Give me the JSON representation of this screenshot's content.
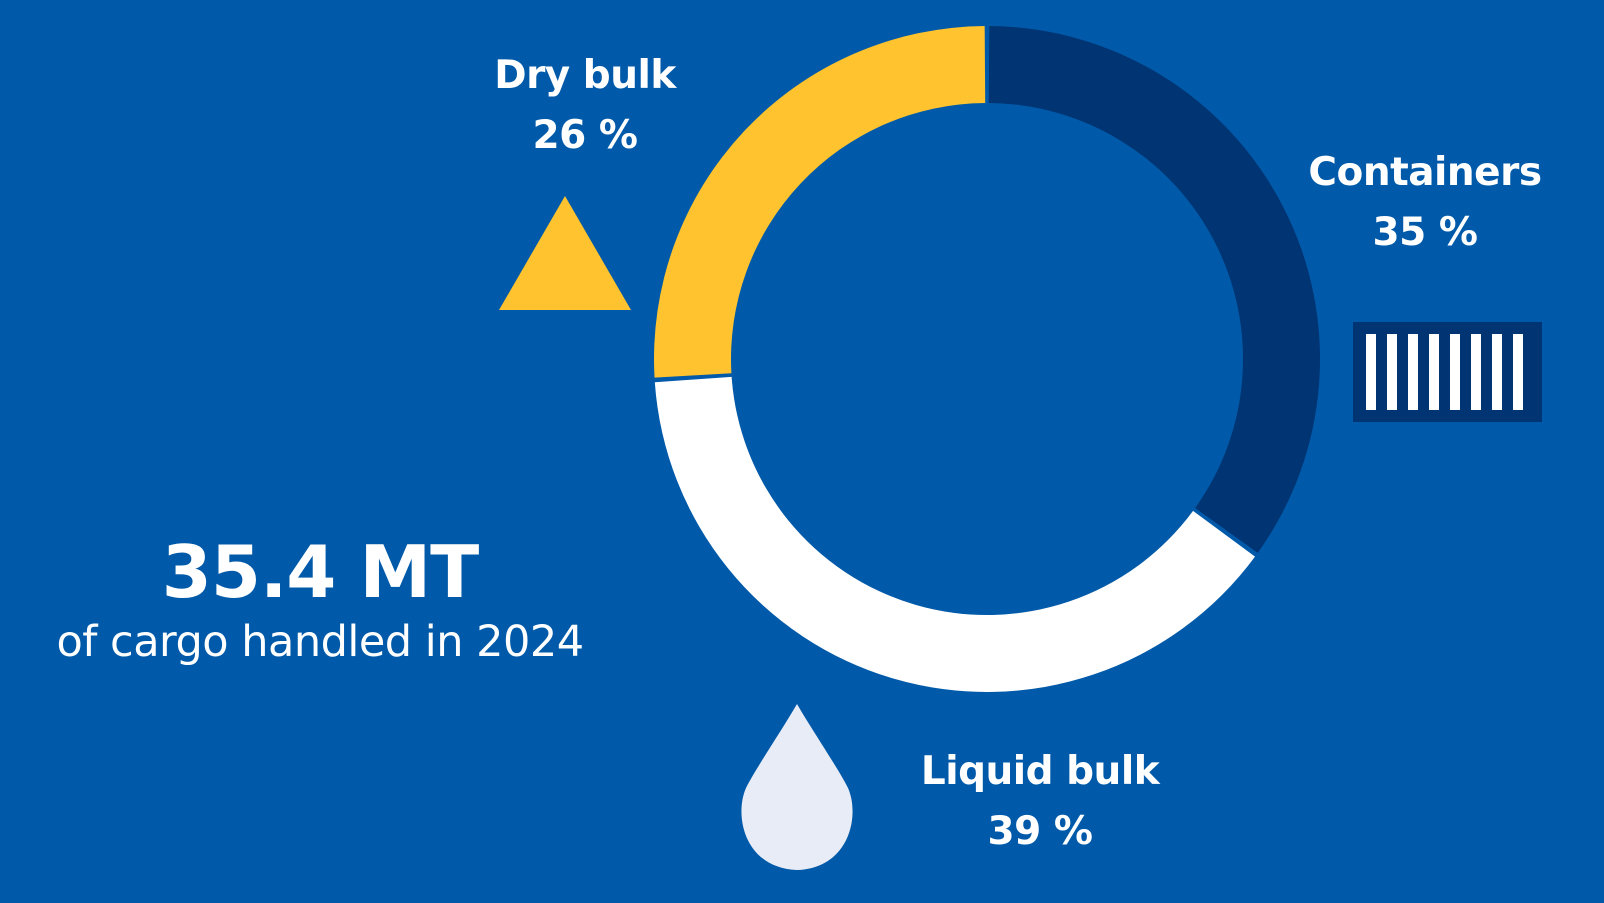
{
  "headline": {
    "value": "35.4 MT",
    "caption": "of cargo handled in 2024"
  },
  "colors": {
    "background": "#005aa9",
    "containers": "#003472",
    "liquid_bulk": "#ffffff",
    "dry_bulk": "#fec32e",
    "drop_icon": "#e8ecf6"
  },
  "icons": {
    "dry_bulk": "triangle-icon",
    "containers": "container-icon",
    "liquid_bulk": "drop-icon"
  },
  "chart_data": {
    "type": "pie",
    "style": "donut",
    "start_angle_deg": 0,
    "direction": "clockwise",
    "slices": [
      {
        "key": "containers",
        "label": "Containers",
        "value": 35,
        "value_label": "35 %",
        "color": "#003472"
      },
      {
        "key": "liquid",
        "label": "Liquid bulk",
        "value": 39,
        "value_label": "39 %",
        "color": "#ffffff"
      },
      {
        "key": "dry",
        "label": "Dry bulk",
        "value": 26,
        "value_label": "26 %",
        "color": "#fec32e"
      }
    ]
  }
}
